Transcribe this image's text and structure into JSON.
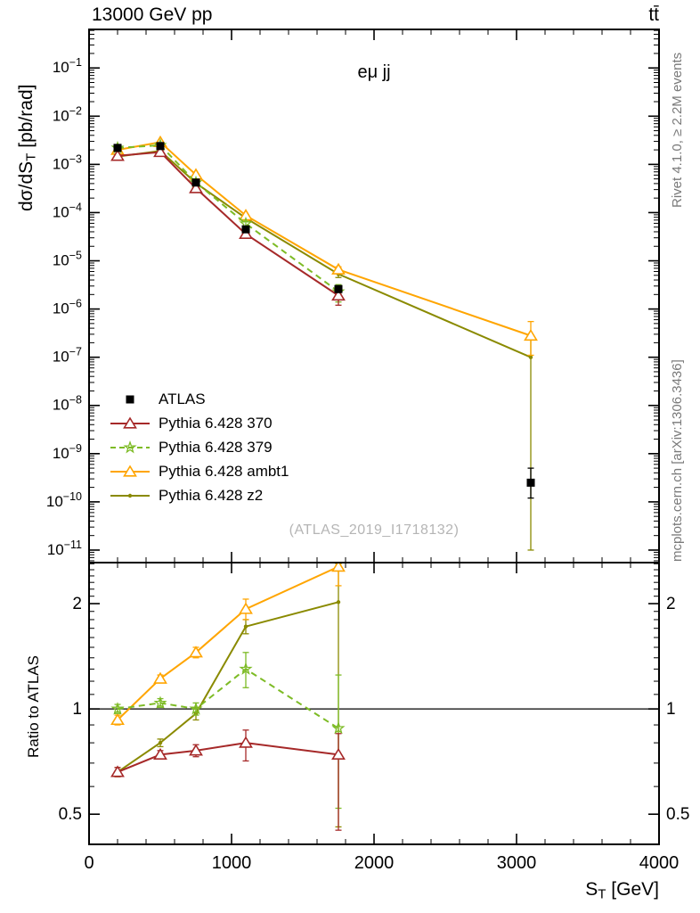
{
  "header": {
    "left": "13000 GeV pp",
    "right": "tt̄"
  },
  "watermark": "(ATLAS_2019_I1718132)",
  "side_labels": {
    "rivet": "Rivet 4.1.0, ≥ 2.2M events",
    "mcplots": "mcplots.cern.ch [arXiv:1306.3436]"
  },
  "axes": {
    "x_label": {
      "prefix": "S",
      "sub": "T",
      "suffix": " [GeV]"
    },
    "y_label_main": {
      "prefix": "dσ/dS",
      "sub": "T",
      "suffix": " [pb/rad]"
    },
    "y_label_ratio": "Ratio to ATLAS"
  },
  "chart_data": {
    "type": "line",
    "title": "eμ jj",
    "xlabel": "S_T [GeV]",
    "ylabel": "dσ/dS_T [pb/rad]",
    "ratio_ylabel": "Ratio to ATLAS",
    "legend_position": "middle-left",
    "grid": false,
    "xlim": [
      0,
      4000
    ],
    "x_ticks": [
      0,
      1000,
      2000,
      3000,
      4000
    ],
    "main": {
      "scale": "log",
      "ylim": [
        5.5e-12,
        0.63
      ],
      "tick_exponents": [
        -11,
        -10,
        -9,
        -8,
        -7,
        -6,
        -5,
        -4,
        -3,
        -2,
        -1
      ]
    },
    "ratio": {
      "scale": "log",
      "ylim": [
        0.41,
        2.62
      ],
      "ticks": [
        0.5,
        1,
        2
      ],
      "tick_labels": [
        "0.5",
        "1",
        "2"
      ],
      "ref_line": 1
    },
    "series": [
      {
        "name": "ATLAS",
        "role": "data",
        "color": "#000000",
        "marker": "square",
        "line": "none",
        "x": [
          200,
          500,
          750,
          1100,
          1750,
          3100
        ],
        "y": [
          0.0022,
          0.0024,
          0.00042,
          4.5e-05,
          2.6e-06,
          2.5e-10
        ],
        "ylo": [
          0.0021,
          0.0023,
          0.0004,
          4.2e-05,
          2.2e-06,
          1.2e-10
        ],
        "yhi": [
          0.0023,
          0.0025,
          0.00044,
          4.8e-05,
          3e-06,
          5e-10
        ]
      },
      {
        "name": "Pythia 6.428 370",
        "role": "mc",
        "color": "#a62929",
        "marker": "triangle",
        "line": "solid",
        "x": [
          200,
          500,
          750,
          1100,
          1750
        ],
        "y": [
          0.0015,
          0.0018,
          0.00032,
          3.6e-05,
          1.9e-06
        ],
        "ylo": [
          0.00145,
          0.00174,
          0.000305,
          3.2e-05,
          1.2e-06
        ],
        "yhi": [
          0.00155,
          0.00186,
          0.000335,
          4e-05,
          2.3e-06
        ],
        "ratio": [
          0.66,
          0.74,
          0.76,
          0.8,
          0.74
        ],
        "rlo": [
          0.64,
          0.72,
          0.73,
          0.71,
          0.45
        ],
        "rhi": [
          0.68,
          0.76,
          0.79,
          0.87,
          0.85
        ]
      },
      {
        "name": "Pythia 6.428 379",
        "role": "mc",
        "color": "#7dbb25",
        "marker": "star",
        "line": "dashed",
        "x": [
          200,
          500,
          750,
          1100,
          1750
        ],
        "y": [
          0.0022,
          0.0025,
          0.00042,
          5.9e-05,
          2.3e-06
        ],
        "ylo": [
          0.00215,
          0.00244,
          0.0004,
          5.2e-05,
          1.4e-06
        ],
        "yhi": [
          0.00225,
          0.00256,
          0.00044,
          6.6e-05,
          3.2e-06
        ],
        "ratio": [
          1.0,
          1.04,
          1.0,
          1.3,
          0.88
        ],
        "rlo": [
          0.97,
          1.01,
          0.96,
          1.15,
          0.52
        ],
        "rhi": [
          1.03,
          1.07,
          1.04,
          1.45,
          1.25
        ]
      },
      {
        "name": "Pythia 6.428 ambt1",
        "role": "mc",
        "color": "#ffa500",
        "marker": "triangle",
        "line": "solid",
        "x": [
          200,
          500,
          750,
          1100,
          1750,
          3100
        ],
        "y": [
          0.002,
          0.0029,
          0.00061,
          8.7e-05,
          6.6e-06,
          2.8e-07
        ],
        "ylo": [
          0.00195,
          0.00283,
          0.00059,
          8.2e-05,
          5.7e-06,
          1.1e-07
        ],
        "yhi": [
          0.00205,
          0.00297,
          0.00063,
          9.2e-05,
          7.5e-06,
          5.5e-07
        ],
        "ratio": [
          0.93,
          1.22,
          1.45,
          1.93,
          2.55
        ],
        "rlo": [
          0.9,
          1.19,
          1.4,
          1.8,
          2.25
        ],
        "rhi": [
          0.96,
          1.25,
          1.5,
          2.06,
          2.62
        ]
      },
      {
        "name": "Pythia 6.428 z2",
        "role": "mc",
        "color": "#8a8a00",
        "marker": "dot",
        "line": "solid",
        "x": [
          200,
          500,
          750,
          1100,
          1750,
          3100
        ],
        "y": [
          0.00145,
          0.0019,
          0.00041,
          7.7e-05,
          5.3e-06,
          1e-07
        ],
        "ylo": [
          0.0014,
          0.00185,
          0.000395,
          7.3e-05,
          4.5e-06,
          1e-11
        ],
        "yhi": [
          0.0015,
          0.00195,
          0.000425,
          8.1e-05,
          6.1e-06,
          2.6e-07
        ],
        "ratio": [
          0.66,
          0.8,
          0.97,
          1.72,
          2.02
        ],
        "rlo": [
          0.64,
          0.78,
          0.93,
          1.64,
          0.46
        ],
        "rhi": [
          0.68,
          0.82,
          1.01,
          1.8,
          2.6
        ]
      }
    ]
  }
}
